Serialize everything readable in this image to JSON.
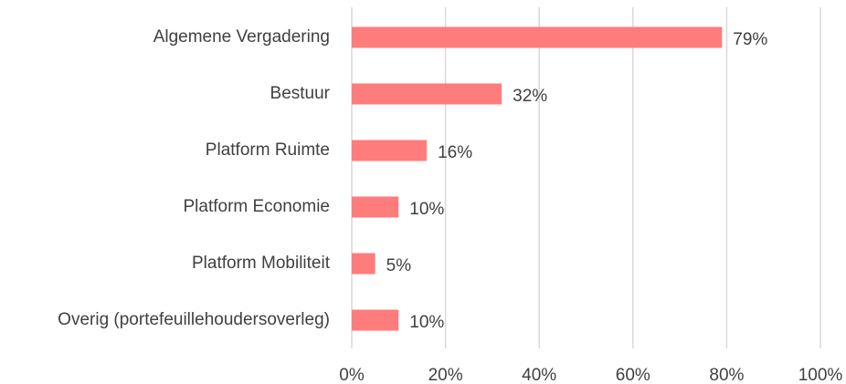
{
  "chart_data": {
    "type": "bar",
    "orientation": "horizontal",
    "categories": [
      "Algemene Vergadering",
      "Bestuur",
      "Platform Ruimte",
      "Platform Economie",
      "Platform Mobiliteit",
      "Overig (portefeuillehoudersoverleg)"
    ],
    "values": [
      79,
      32,
      16,
      10,
      5,
      10
    ],
    "value_labels": [
      "79%",
      "32%",
      "16%",
      "10%",
      "5%",
      "10%"
    ],
    "color": "#ff7c7c",
    "xlim": [
      0,
      100
    ],
    "xticks": [
      {
        "value": 0,
        "label": "0%"
      },
      {
        "value": 20,
        "label": "20%"
      },
      {
        "value": 40,
        "label": "40%"
      },
      {
        "value": 60,
        "label": "60%"
      },
      {
        "value": 80,
        "label": "80%"
      },
      {
        "value": 100,
        "label": "100%"
      }
    ],
    "grid": true
  }
}
